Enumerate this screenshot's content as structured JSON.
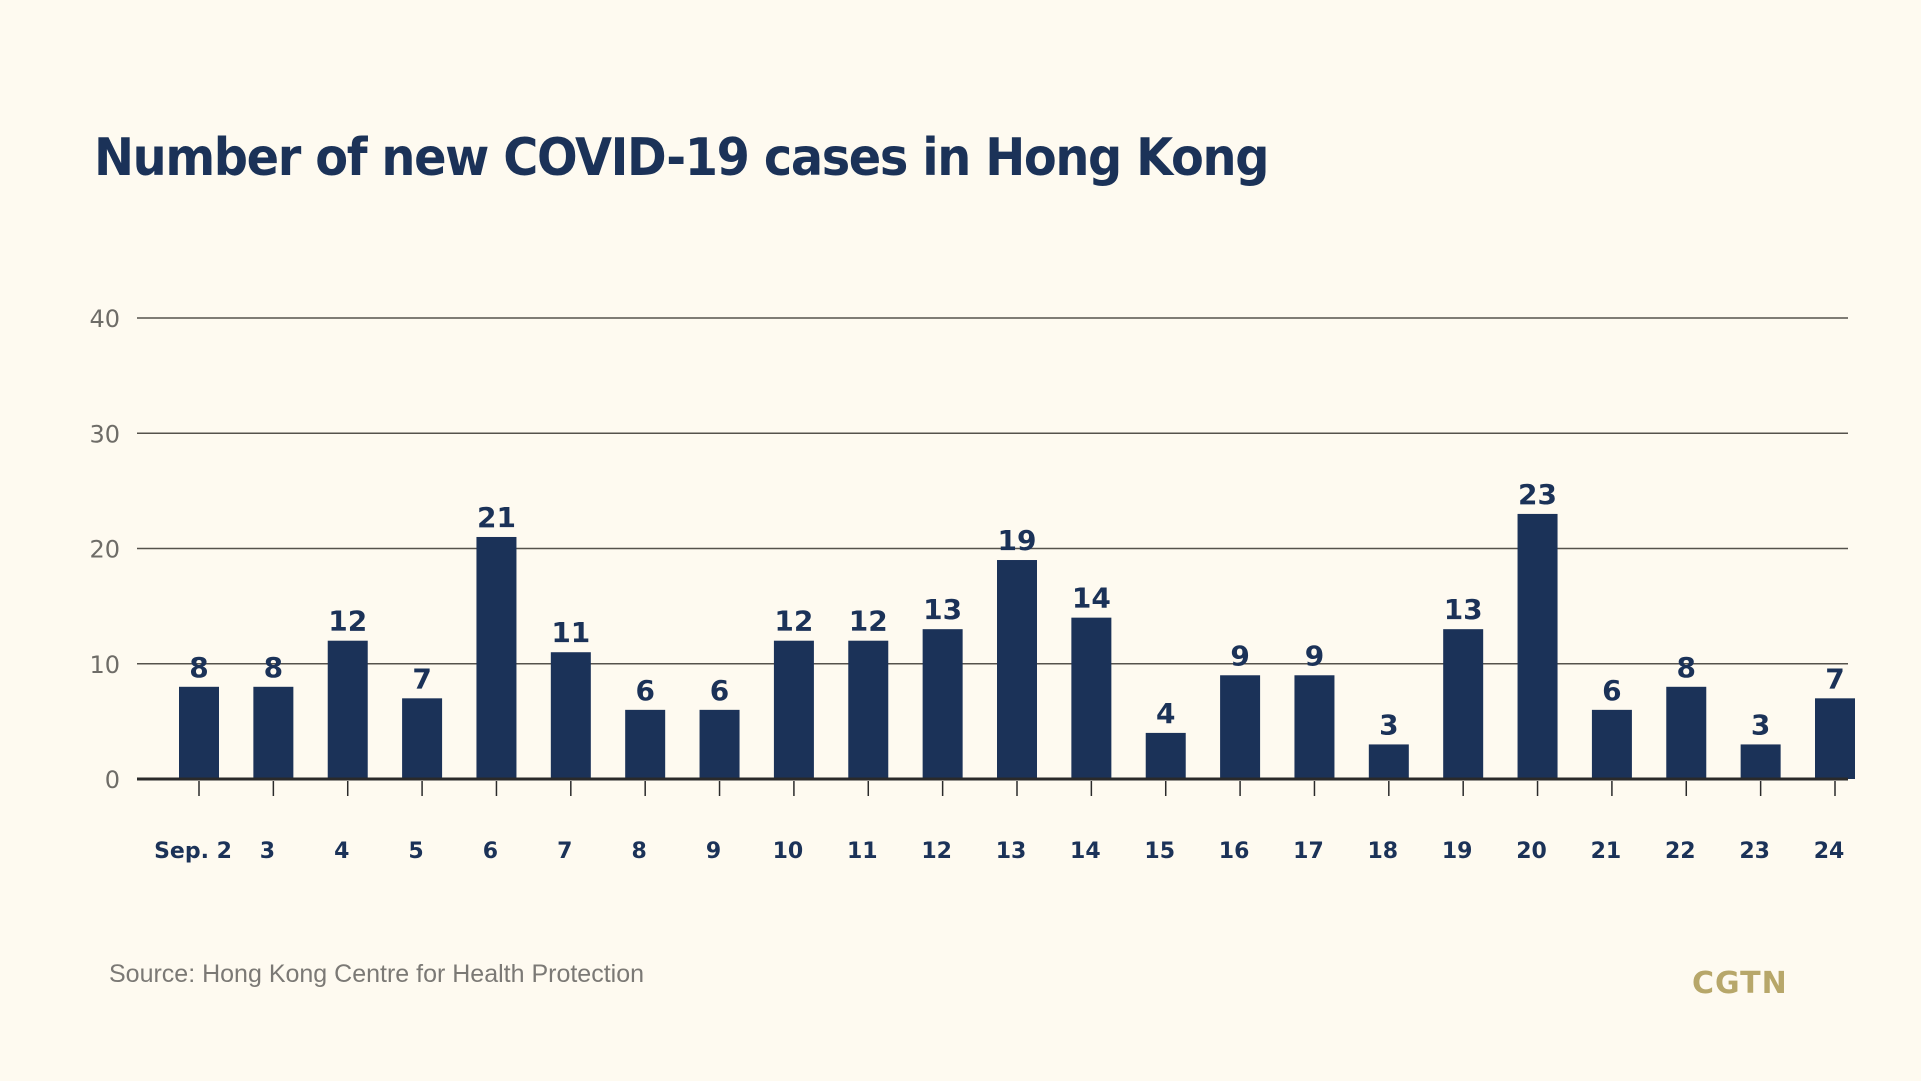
{
  "chart_data": {
    "type": "bar",
    "title": "Number of new COVID-19 cases in Hong Kong",
    "xlabel": "",
    "ylabel": "",
    "categories": [
      "Sep. 2",
      "3",
      "4",
      "5",
      "6",
      "7",
      "8",
      "9",
      "10",
      "11",
      "12",
      "13",
      "14",
      "15",
      "16",
      "17",
      "18",
      "19",
      "20",
      "21",
      "22",
      "23",
      "24"
    ],
    "values": [
      8,
      8,
      12,
      7,
      21,
      11,
      6,
      6,
      12,
      12,
      13,
      19,
      14,
      4,
      9,
      9,
      3,
      13,
      23,
      6,
      8,
      3,
      7
    ],
    "ylim": [
      0,
      40
    ],
    "yticks": [
      0,
      10,
      20,
      30,
      40
    ],
    "grid": true,
    "data_labels": true,
    "bar_color": "#1b3258"
  },
  "footer": {
    "source": "Source: Hong Kong Centre for Health Protection",
    "logo": "CGTN"
  },
  "colors": {
    "background": "#fefaf0",
    "bar": "#1b3258",
    "logo": "#b7a76a"
  }
}
